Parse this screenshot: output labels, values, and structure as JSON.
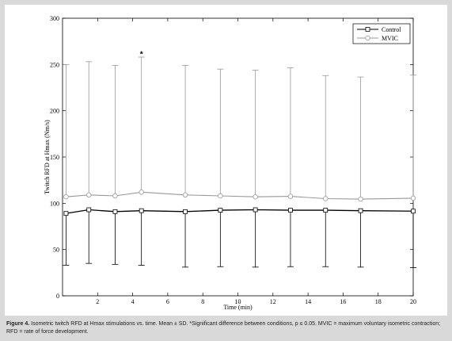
{
  "chart_data": {
    "type": "line",
    "xlabel": "Time (min)",
    "ylabel": "Twitch RFD at Hmax (Nm/s)",
    "xlim": [
      0,
      20
    ],
    "ylim": [
      0,
      300
    ],
    "xticks": [
      2,
      4,
      6,
      8,
      10,
      12,
      14,
      16,
      18,
      20
    ],
    "yticks": [
      0,
      50,
      100,
      150,
      200,
      250,
      300
    ],
    "legend_position": "top-right",
    "grid": false,
    "x": [
      0.2,
      1.5,
      3,
      4.5,
      7,
      9,
      11,
      13,
      15,
      17,
      20
    ],
    "series": [
      {
        "name": "Control",
        "color": "#000000",
        "marker": "square",
        "values": [
          89,
          93,
          91,
          92,
          91,
          92.5,
          93,
          92.5,
          92.5,
          92,
          91.5
        ],
        "sd": [
          56,
          58,
          57,
          59,
          60,
          61,
          62,
          61,
          61,
          61,
          61
        ]
      },
      {
        "name": "MVIC",
        "color": "#999999",
        "marker": "circle",
        "values": [
          107,
          109,
          108,
          112,
          109,
          108,
          107,
          107.5,
          105,
          104.5,
          105.5
        ],
        "sd": [
          143,
          144,
          141,
          146,
          140,
          137,
          137,
          139,
          133,
          132,
          133
        ]
      }
    ],
    "annotations": [
      {
        "text": "*",
        "x": 4.5,
        "y": 262
      }
    ]
  },
  "caption": {
    "label": "Figure 4.",
    "text": " Isometric twitch RFD at Hmax stimulations vs. time. Mean ± SD. *Significant difference between conditions, p ≤ 0.05. MVIC = maximum voluntary isometric contraction; RFD = rate of force development."
  }
}
